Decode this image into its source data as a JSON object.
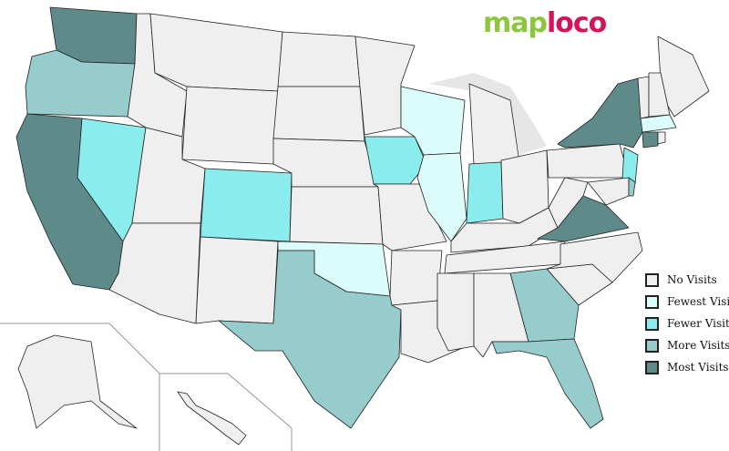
{
  "logo": {
    "part1": "map",
    "part2": "loco",
    "colors": {
      "part1": "#8cc63f",
      "part2": "#d4145a"
    }
  },
  "legend": [
    {
      "key": "none",
      "label": "No Visits",
      "color": "#efefef"
    },
    {
      "key": "fewest",
      "label": "Fewest Visits",
      "color": "#dcfcfc"
    },
    {
      "key": "fewer",
      "label": "Fewer Visits",
      "color": "#8aecec"
    },
    {
      "key": "more",
      "label": "More Visits",
      "color": "#96cccc"
    },
    {
      "key": "most",
      "label": "Most Visits",
      "color": "#5f8a8a"
    }
  ],
  "states": {
    "WA": "most",
    "OR": "more",
    "CA": "most",
    "NV": "fewer",
    "ID": "none",
    "MT": "none",
    "WY": "none",
    "UT": "none",
    "AZ": "none",
    "CO": "fewer",
    "NM": "none",
    "ND": "none",
    "SD": "none",
    "NE": "none",
    "KS": "none",
    "OK": "fewest",
    "TX": "more",
    "MN": "none",
    "IA": "fewer",
    "MO": "none",
    "AR": "none",
    "LA": "none",
    "WI": "fewest",
    "IL": "fewest",
    "MI": "none",
    "IN": "fewer",
    "OH": "none",
    "KY": "none",
    "TN": "none",
    "MS": "none",
    "AL": "none",
    "GA": "more",
    "FL": "more",
    "SC": "none",
    "NC": "none",
    "VA": "most",
    "WV": "none",
    "PA": "none",
    "NY": "most",
    "NJ": "fewer",
    "MD": "none",
    "DE": "more",
    "ME": "none",
    "VT": "none",
    "NH": "none",
    "MA": "fewest",
    "CT": "most",
    "RI": "none",
    "AK": "none",
    "HI": "none"
  }
}
